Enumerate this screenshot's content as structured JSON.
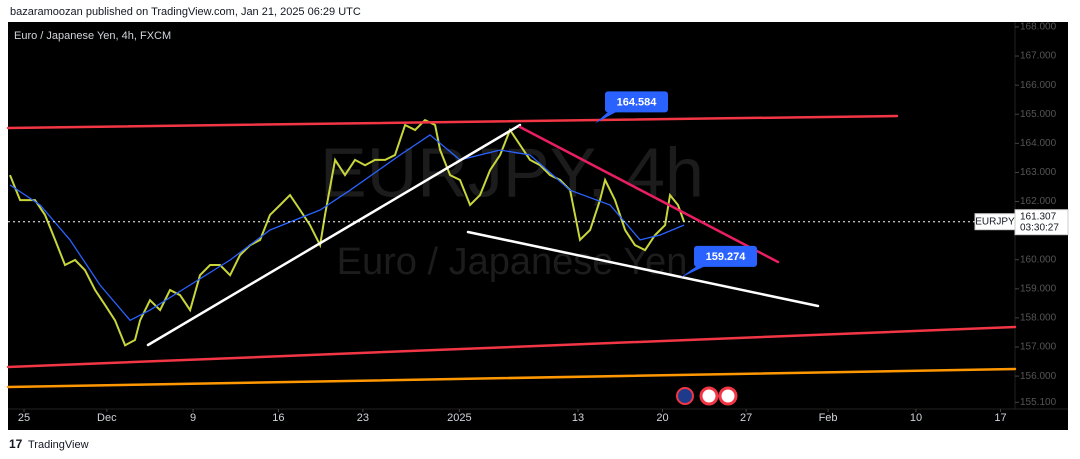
{
  "header": {
    "published": "bazaramoozan published on TradingView.com, Jan 21, 2025 06:29 UTC"
  },
  "footer": {
    "brand": "TradingView"
  },
  "chart_data": {
    "type": "line",
    "title": "Euro / Japanese Yen, 4h, FXCM",
    "watermark": [
      "EURJPY, 4h",
      "Euro / Japanese Yen"
    ],
    "symbol": "EURJPY",
    "last_price": 161.307,
    "countdown": "03:30:27",
    "price_labels": [
      164.584,
      159.274
    ],
    "grid": false,
    "xlim": [
      -0.94,
      58.05
    ],
    "ylim": [
      154.87,
      168.17
    ],
    "xticks": [
      {
        "value": 0,
        "label": "25"
      },
      {
        "value": 4.85,
        "label": "Dec"
      },
      {
        "value": 9.9,
        "label": "9"
      },
      {
        "value": 14.9,
        "label": "16"
      },
      {
        "value": 19.85,
        "label": "23"
      },
      {
        "value": 25.5,
        "label": "2025"
      },
      {
        "value": 32.45,
        "label": "13"
      },
      {
        "value": 37.4,
        "label": "20"
      },
      {
        "value": 42.3,
        "label": "27"
      },
      {
        "value": 47.1,
        "label": "Feb"
      },
      {
        "value": 52.25,
        "label": "10"
      },
      {
        "value": 57.2,
        "label": "17"
      }
    ],
    "yticks": [
      {
        "value": 168,
        "label": "168.000"
      },
      {
        "value": 167,
        "label": "167.000"
      },
      {
        "value": 166,
        "label": "166.000"
      },
      {
        "value": 165,
        "label": "165.000"
      },
      {
        "value": 164,
        "label": "164.000"
      },
      {
        "value": 163,
        "label": "163.000"
      },
      {
        "value": 162,
        "label": "162.000"
      },
      {
        "value": 160,
        "label": "160.000"
      },
      {
        "value": 159,
        "label": "159.000"
      },
      {
        "value": 158,
        "label": "158.000"
      },
      {
        "value": 157,
        "label": "157.000"
      },
      {
        "value": 156,
        "label": "156.000"
      },
      {
        "value": 155.1,
        "label": "155.100"
      }
    ],
    "series": [
      {
        "color": "#c8d63c",
        "x": [
          -0.82,
          -0.23,
          0.64,
          1.23,
          1.82,
          2.4,
          2.99,
          3.57,
          4.16,
          4.75,
          5.33,
          5.92,
          6.5,
          6.8,
          7.38,
          7.97,
          8.55,
          9.14,
          9.73,
          10.31,
          10.9,
          11.48,
          12.07,
          12.65,
          13.24,
          13.83,
          14.41,
          15.0,
          15.58,
          16.17,
          16.75,
          17.34,
          17.63,
          18.22,
          18.8,
          19.39,
          19.98,
          20.56,
          21.15,
          21.73,
          22.32,
          22.91,
          23.49,
          24.08,
          24.37,
          24.96,
          25.54,
          26.13,
          26.71,
          27.3,
          27.89,
          28.47,
          29.06,
          29.64,
          30.23,
          30.81,
          31.4,
          31.99,
          32.57,
          33.16,
          33.74,
          34.04,
          34.62,
          35.21,
          35.79,
          36.38,
          36.97,
          37.55,
          37.84,
          38.31,
          38.66
        ],
        "values": [
          162.91,
          162.05,
          162.05,
          161.54,
          160.68,
          159.82,
          159.99,
          159.64,
          158.96,
          158.44,
          157.92,
          157.06,
          157.24,
          157.92,
          158.61,
          158.27,
          158.96,
          158.78,
          158.27,
          159.47,
          159.82,
          159.82,
          159.47,
          160.16,
          160.5,
          160.68,
          161.54,
          161.88,
          162.22,
          161.71,
          161.19,
          160.5,
          161.54,
          163.43,
          162.91,
          163.43,
          163.25,
          163.43,
          163.43,
          163.6,
          164.63,
          164.46,
          164.8,
          164.63,
          163.77,
          162.91,
          162.74,
          161.88,
          162.22,
          163.08,
          163.6,
          164.46,
          163.94,
          163.43,
          163.25,
          162.91,
          162.74,
          162.39,
          160.68,
          161.02,
          162.05,
          162.74,
          162.05,
          161.02,
          160.5,
          160.33,
          160.85,
          161.19,
          162.22,
          161.88,
          161.31
        ]
      },
      {
        "color": "#2962ff",
        "x": [
          -0.82,
          0.94,
          2.69,
          4.45,
          6.21,
          7.38,
          9.73,
          12.07,
          14.41,
          17.34,
          19.1,
          22.03,
          23.78,
          25.54,
          27.89,
          29.64,
          31.99,
          34.33,
          36.09,
          37.26,
          38.66
        ],
        "values": [
          162.57,
          161.88,
          160.68,
          159.13,
          157.92,
          158.27,
          159.13,
          159.99,
          161.02,
          161.71,
          162.39,
          163.6,
          164.29,
          163.43,
          163.77,
          163.6,
          162.39,
          161.88,
          160.68,
          160.85,
          161.19
        ]
      }
    ]
  }
}
